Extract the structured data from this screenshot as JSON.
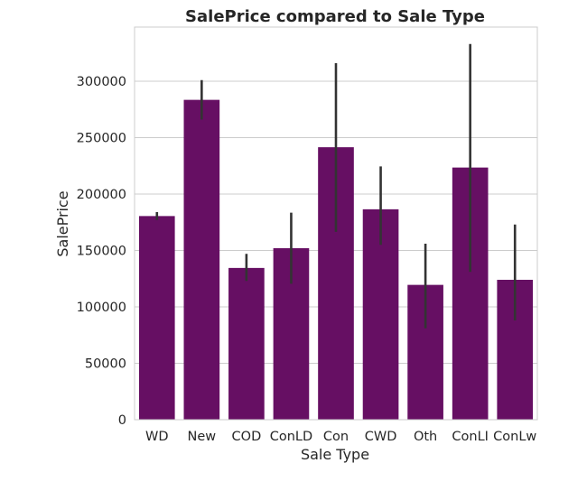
{
  "chart_data": {
    "type": "bar",
    "title": "SalePrice compared to Sale Type",
    "xlabel": "Sale Type",
    "ylabel": "SalePrice",
    "categories": [
      "WD",
      "New",
      "COD",
      "ConLD",
      "Con",
      "CWD",
      "Oth",
      "ConLI",
      "ConLw"
    ],
    "values": [
      180500,
      283500,
      134500,
      152000,
      241500,
      186500,
      119500,
      223500,
      124000
    ],
    "error_low": [
      177000,
      266000,
      123000,
      120500,
      166500,
      155000,
      81000,
      131000,
      88000
    ],
    "error_high": [
      184000,
      301000,
      147000,
      183500,
      316000,
      224500,
      156000,
      333000,
      173000
    ],
    "yticks": [
      0,
      50000,
      100000,
      150000,
      200000,
      250000,
      300000
    ],
    "ylim": [
      0,
      348000
    ],
    "grid": true,
    "bar_color": "#660f63",
    "error_color": "#333333"
  }
}
